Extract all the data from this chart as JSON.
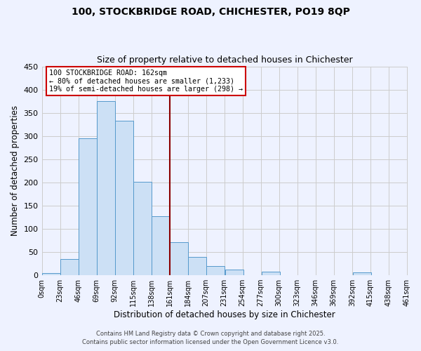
{
  "title": "100, STOCKBRIDGE ROAD, CHICHESTER, PO19 8QP",
  "subtitle": "Size of property relative to detached houses in Chichester",
  "xlabel": "Distribution of detached houses by size in Chichester",
  "ylabel": "Number of detached properties",
  "bin_edges": [
    0,
    23,
    46,
    69,
    92,
    115,
    138,
    161,
    184,
    207,
    231,
    254,
    277,
    300,
    323,
    346,
    369,
    392,
    415,
    438,
    461
  ],
  "bin_counts": [
    5,
    35,
    295,
    375,
    333,
    202,
    127,
    71,
    40,
    20,
    12,
    0,
    8,
    0,
    0,
    0,
    0,
    6,
    0,
    0
  ],
  "bar_facecolor": "#cce0f5",
  "bar_edgecolor": "#5599cc",
  "grid_color": "#cccccc",
  "background_color": "#eef2ff",
  "vline_x": 161,
  "vline_color": "#8b0000",
  "annotation_line1": "100 STOCKBRIDGE ROAD: 162sqm",
  "annotation_line2": "← 80% of detached houses are smaller (1,233)",
  "annotation_line3": "19% of semi-detached houses are larger (298) →",
  "annotation_edgecolor": "#cc0000",
  "annotation_facecolor": "white",
  "xlim": [
    0,
    461
  ],
  "ylim": [
    0,
    450
  ],
  "yticks": [
    0,
    50,
    100,
    150,
    200,
    250,
    300,
    350,
    400,
    450
  ],
  "xtick_labels": [
    "0sqm",
    "23sqm",
    "46sqm",
    "69sqm",
    "92sqm",
    "115sqm",
    "138sqm",
    "161sqm",
    "184sqm",
    "207sqm",
    "231sqm",
    "254sqm",
    "277sqm",
    "300sqm",
    "323sqm",
    "346sqm",
    "369sqm",
    "392sqm",
    "415sqm",
    "438sqm",
    "461sqm"
  ],
  "footer1": "Contains HM Land Registry data © Crown copyright and database right 2025.",
  "footer2": "Contains public sector information licensed under the Open Government Licence v3.0."
}
